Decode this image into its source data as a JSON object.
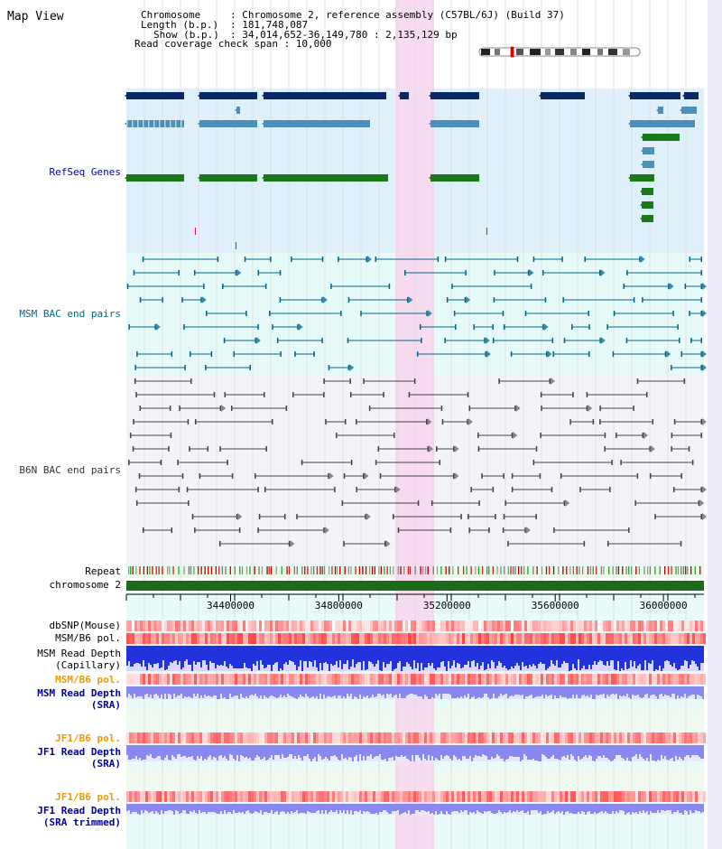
{
  "page": {
    "title": "Map View"
  },
  "info": {
    "chromosome_key": "Chromosome",
    "chromosome_val": ": Chromosome 2, reference assembly (C57BL/6J) (Build 37)",
    "length_key": "Length (b.p.)",
    "length_val": ": 181,748,087",
    "show_key": "Show (b.p.)",
    "show_val": ": 34,014,652-36,149,780 : 2,135,129 bp",
    "coverage": "Read coverage check span : 10,000"
  },
  "tracks": {
    "refseq": {
      "label": "RefSeq Genes",
      "color": "#0000aa"
    },
    "msm_bac": {
      "label": "MSM BAC end pairs",
      "color": "#006688"
    },
    "b6n_bac": {
      "label": "B6N BAC end pairs",
      "color": "#333333"
    },
    "repeat": {
      "label": "Repeat"
    },
    "chromosome": {
      "label": "chromosome 2"
    },
    "dbsnp": {
      "label": "dbSNP(Mouse)"
    },
    "msm_b6_pol_1": {
      "label": "MSM/B6 pol."
    },
    "msm_depth_cap_1": {
      "label": "MSM Read Depth"
    },
    "msm_depth_cap_2": {
      "label": "(Capillary)"
    },
    "msm_b6_pol_2": {
      "label": "MSM/B6 pol."
    },
    "msm_depth_sra_1": {
      "label": "MSM Read Depth"
    },
    "msm_depth_sra_2": {
      "label": "(SRA)"
    },
    "jf1_b6_pol_1": {
      "label": "JF1/B6 pol."
    },
    "jf1_depth_sra_1": {
      "label": "JF1 Read Depth"
    },
    "jf1_depth_sra_2": {
      "label": "(SRA)"
    },
    "jf1_b6_pol_2": {
      "label": "JF1/B6 pol."
    },
    "jf1_depth_trim_1": {
      "label": "JF1 Read Depth"
    },
    "jf1_depth_trim_2": {
      "label": "(SRA trimmed)"
    }
  },
  "axis": {
    "ticks": [
      "34400000",
      "34800000",
      "35200000",
      "35600000",
      "36000000"
    ],
    "tick_values": [
      34400000,
      34800000,
      35200000,
      35600000,
      36000000
    ]
  },
  "colors": {
    "highlight": "#f8d8f0",
    "refseq_dark": "#0a2a66",
    "refseq_mid": "#4a90b8",
    "refseq_green": "#1a7a1a",
    "orange_label": "#ee9900",
    "navy_label": "#000099",
    "chrom_bar": "#1a6b1a",
    "depth_blue": "#2233dd",
    "depth_light": "#8888ee"
  }
}
